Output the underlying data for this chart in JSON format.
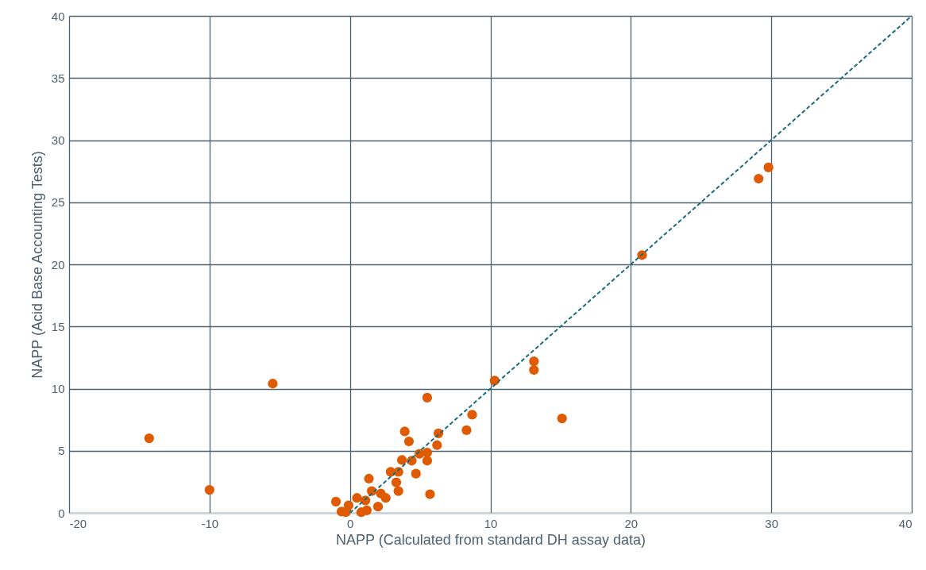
{
  "chart_data": {
    "type": "scatter",
    "xlabel": "NAPP (Calculated from standard DH assay data)",
    "ylabel": "NAPP (Acid Base Accounting Tests)",
    "xlim": [
      -20,
      40
    ],
    "ylim": [
      0,
      40
    ],
    "xticks": [
      -20,
      -10,
      0,
      10,
      20,
      30,
      40
    ],
    "yticks": [
      0,
      5,
      10,
      15,
      20,
      25,
      30,
      35,
      40
    ],
    "grid": true,
    "series": [
      {
        "marker": "circle",
        "color": "#e05a00",
        "x": [
          -14.3,
          -10.0,
          -5.5,
          -1.0,
          -0.6,
          -0.1,
          -0.3,
          0.5,
          0.8,
          1.2,
          1.1,
          1.35,
          1.55,
          2.0,
          2.2,
          2.55,
          2.9,
          3.45,
          3.3,
          3.45,
          3.7,
          3.9,
          4.2,
          4.7,
          4.4,
          4.95,
          5.5,
          5.5,
          5.5,
          5.7,
          6.1,
          6.3,
          6.2,
          8.3,
          8.7,
          10.3,
          13.1,
          13.1,
          15.1,
          20.8,
          29.1,
          29.8
        ],
        "values": [
          6.0,
          1.85,
          10.4,
          0.9,
          0.1,
          0.6,
          0.05,
          1.2,
          0.05,
          0.2,
          1.0,
          2.75,
          1.75,
          0.5,
          1.55,
          1.2,
          3.3,
          3.3,
          2.45,
          1.75,
          4.25,
          6.55,
          5.75,
          3.15,
          4.2,
          4.75,
          4.85,
          4.2,
          9.27,
          1.5,
          null,
          6.4,
          5.45,
          6.65,
          7.9,
          10.65,
          12.2,
          11.5,
          7.6,
          20.75,
          26.9,
          27.8
        ]
      },
      {
        "type": "line",
        "marker": "none",
        "color": "#1a6b80",
        "line_style": "dashed",
        "x": [
          0,
          40
        ],
        "values": [
          0,
          40
        ]
      }
    ]
  }
}
